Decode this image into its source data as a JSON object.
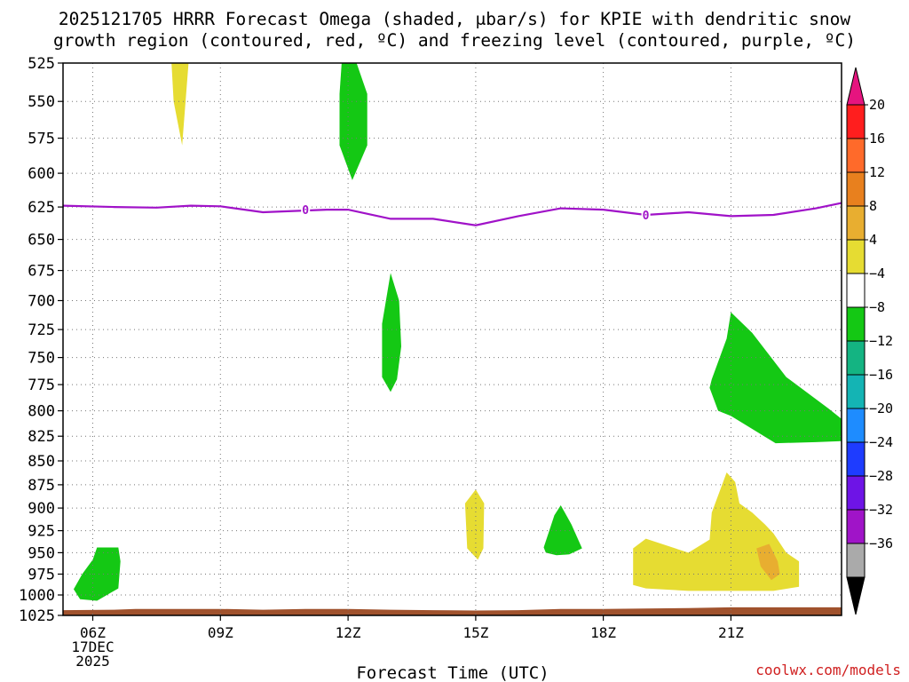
{
  "chart_data": {
    "type": "heatmap",
    "title_line1": "2025121705 HRRR Forecast Omega (shaded, μbar/s) for KPIE with dendritic snow",
    "title_line2": "growth region (contoured, red, ºC) and freezing level (contoured, purple, ºC)",
    "xlabel": "Forecast Time (UTC)",
    "xlim": [
      5.3,
      23.6
    ],
    "x_ticks": [
      {
        "x": 6,
        "lines": [
          "06Z",
          "17DEC",
          "2025"
        ]
      },
      {
        "x": 9,
        "lines": [
          "09Z"
        ]
      },
      {
        "x": 12,
        "lines": [
          "12Z"
        ]
      },
      {
        "x": 15,
        "lines": [
          "15Z"
        ]
      },
      {
        "x": 18,
        "lines": [
          "18Z"
        ]
      },
      {
        "x": 21,
        "lines": [
          "21Z"
        ]
      }
    ],
    "y_ticks": [
      525,
      550,
      575,
      600,
      625,
      650,
      675,
      700,
      725,
      750,
      775,
      800,
      825,
      850,
      875,
      900,
      925,
      950,
      975,
      1000,
      1025
    ],
    "y_tick_labels": [
      "525",
      "550",
      "575",
      "600",
      "625",
      "650",
      "675",
      "700",
      "725",
      "750",
      "775",
      "800",
      "825",
      "850",
      "875",
      "900",
      "925",
      "950",
      "975",
      "1000",
      "1025"
    ],
    "ylim": [
      525,
      1025
    ],
    "colorbar": {
      "labels": [
        "20",
        "16",
        "12",
        "8",
        "4",
        "−4",
        "−8",
        "−12",
        "−16",
        "−20",
        "−24",
        "−28",
        "−32",
        "−36"
      ],
      "colors": [
        "#ff1e1e",
        "#ff6a2a",
        "#e8801e",
        "#e8ae30",
        "#e6dc32",
        "#ffffff",
        "#14c814",
        "#14b482",
        "#14b4b4",
        "#1e8cff",
        "#1e3cff",
        "#6e14e6",
        "#a014c8",
        "#aaaaaa"
      ],
      "top_arrow_color": "#e6147f",
      "bottom_arrow_color": "#000000"
    },
    "freezing_level": {
      "label": "0",
      "color": "#a012c8",
      "points": [
        [
          5.3,
          624
        ],
        [
          6.5,
          625
        ],
        [
          7.5,
          625.5
        ],
        [
          8.3,
          624
        ],
        [
          9,
          624.5
        ],
        [
          10,
          629
        ],
        [
          11.5,
          627
        ],
        [
          12,
          627
        ],
        [
          13,
          634
        ],
        [
          14,
          634
        ],
        [
          15,
          639
        ],
        [
          16,
          632
        ],
        [
          17,
          626
        ],
        [
          18,
          627
        ],
        [
          19,
          631
        ],
        [
          20,
          629
        ],
        [
          21,
          632
        ],
        [
          22,
          631
        ],
        [
          23,
          626
        ],
        [
          23.6,
          622
        ]
      ],
      "label_positions": [
        [
          11,
          627
        ],
        [
          19,
          631
        ]
      ]
    },
    "shaded_regions": [
      {
        "name": "omega-4to8-0800",
        "color": "#e6dc32",
        "points": [
          [
            7.85,
            525
          ],
          [
            8.25,
            525
          ],
          [
            8.1,
            580
          ],
          [
            7.9,
            550
          ]
        ]
      },
      {
        "name": "omega-neg4to-8-1200",
        "color": "#14c814",
        "points": [
          [
            11.85,
            525
          ],
          [
            12.2,
            525
          ],
          [
            12.45,
            545
          ],
          [
            12.45,
            580
          ],
          [
            12.1,
            605
          ],
          [
            11.8,
            580
          ],
          [
            11.8,
            545
          ]
        ]
      },
      {
        "name": "omega-neg4to-8-1300",
        "color": "#14c814",
        "points": [
          [
            13.0,
            677
          ],
          [
            13.2,
            700
          ],
          [
            13.25,
            740
          ],
          [
            13.15,
            770
          ],
          [
            13.0,
            782
          ],
          [
            12.8,
            768
          ],
          [
            12.8,
            720
          ]
        ]
      },
      {
        "name": "omega-neg4to-8-2130",
        "color": "#14c814",
        "points": [
          [
            20.55,
            770
          ],
          [
            20.9,
            733
          ],
          [
            21.0,
            710
          ],
          [
            21.5,
            728
          ],
          [
            22.3,
            768
          ],
          [
            23.3,
            798
          ],
          [
            23.6,
            808
          ],
          [
            23.6,
            830
          ],
          [
            23.0,
            831
          ],
          [
            22.05,
            832
          ],
          [
            21.0,
            805
          ],
          [
            20.7,
            800
          ],
          [
            20.5,
            778
          ]
        ]
      },
      {
        "name": "omega-neg4to-8-0600",
        "color": "#14c814",
        "points": [
          [
            5.55,
            993
          ],
          [
            5.75,
            975
          ],
          [
            6.0,
            958
          ],
          [
            6.1,
            944
          ],
          [
            6.6,
            944
          ],
          [
            6.65,
            960
          ],
          [
            6.6,
            992
          ],
          [
            6.1,
            1007
          ],
          [
            5.7,
            1005
          ]
        ]
      },
      {
        "name": "omega-neg4to-8-1700",
        "color": "#14c814",
        "points": [
          [
            16.6,
            944
          ],
          [
            16.85,
            908
          ],
          [
            17.0,
            897
          ],
          [
            17.25,
            918
          ],
          [
            17.5,
            945
          ],
          [
            17.2,
            952
          ],
          [
            16.9,
            953
          ],
          [
            16.65,
            950
          ]
        ]
      },
      {
        "name": "omega-4to8-1500",
        "color": "#e6dc32",
        "points": [
          [
            14.75,
            895
          ],
          [
            15.0,
            880
          ],
          [
            15.2,
            895
          ],
          [
            15.18,
            945
          ],
          [
            15.05,
            958
          ],
          [
            14.8,
            945
          ]
        ]
      },
      {
        "name": "omega-4to8-2100",
        "color": "#e6dc32",
        "points": [
          [
            18.7,
            988
          ],
          [
            18.7,
            945
          ],
          [
            19.0,
            934
          ],
          [
            20.0,
            950
          ],
          [
            20.5,
            935
          ],
          [
            20.55,
            905
          ],
          [
            20.9,
            862
          ],
          [
            21.1,
            872
          ],
          [
            21.2,
            895
          ],
          [
            21.5,
            905
          ],
          [
            21.8,
            918
          ],
          [
            22.0,
            928
          ],
          [
            22.3,
            950
          ],
          [
            22.6,
            960
          ],
          [
            22.6,
            990
          ],
          [
            22.0,
            995
          ],
          [
            20.0,
            995
          ],
          [
            19.0,
            992
          ]
        ]
      },
      {
        "name": "omega-8to12-2200",
        "color": "#e8ae30",
        "points": [
          [
            21.6,
            945
          ],
          [
            21.9,
            940
          ],
          [
            22.1,
            960
          ],
          [
            22.15,
            975
          ],
          [
            21.95,
            982
          ],
          [
            21.7,
            966
          ]
        ]
      }
    ],
    "terrain": {
      "color": "#a0522d",
      "points": [
        [
          5.3,
          1018.5
        ],
        [
          6.5,
          1018
        ],
        [
          7.0,
          1017
        ],
        [
          9.0,
          1017
        ],
        [
          10.0,
          1018
        ],
        [
          11.0,
          1017
        ],
        [
          12.0,
          1017
        ],
        [
          13.0,
          1018
        ],
        [
          14.0,
          1018.5
        ],
        [
          15.0,
          1019
        ],
        [
          16.0,
          1018.5
        ],
        [
          17.0,
          1017
        ],
        [
          18.0,
          1017
        ],
        [
          20.0,
          1016
        ],
        [
          21.0,
          1015
        ],
        [
          23.6,
          1015
        ]
      ],
      "base": 1025
    }
  },
  "credit": "coolwx.com/models"
}
